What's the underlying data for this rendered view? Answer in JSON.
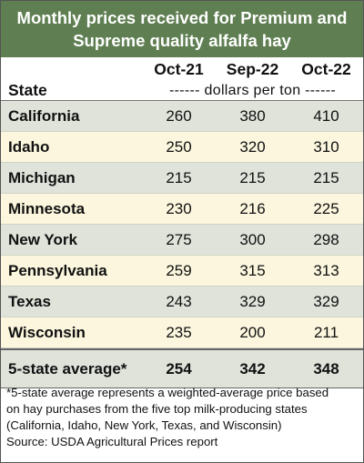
{
  "title": {
    "line1": "Monthly prices received for Premium and",
    "line2": "Supreme quality alfalfa hay"
  },
  "columns": [
    "Oct-21",
    "Sep-22",
    "Oct-22"
  ],
  "state_header": "State",
  "units": "------ dollars per ton ------",
  "rows": [
    {
      "state": "California",
      "values": [
        "260",
        "380",
        "410"
      ]
    },
    {
      "state": "Idaho",
      "values": [
        "250",
        "320",
        "310"
      ]
    },
    {
      "state": "Michigan",
      "values": [
        "215",
        "215",
        "215"
      ]
    },
    {
      "state": "Minnesota",
      "values": [
        "230",
        "216",
        "225"
      ]
    },
    {
      "state": "New York",
      "values": [
        "275",
        "300",
        "298"
      ]
    },
    {
      "state": "Pennsylvania",
      "values": [
        "259",
        "315",
        "313"
      ]
    },
    {
      "state": "Texas",
      "values": [
        "243",
        "329",
        "329"
      ]
    },
    {
      "state": "Wisconsin",
      "values": [
        "235",
        "200",
        "211"
      ]
    }
  ],
  "average": {
    "label": "5-state average*",
    "values": [
      "254",
      "342",
      "348"
    ]
  },
  "footnote": {
    "line1": "*5-state average represents  a weighted-average price based",
    "line2": "on hay purchases from the five top milk-producing states",
    "line3": "(California, Idaho, New York, Texas, and Wisconsin)",
    "line4": "Source: USDA Agricultural Prices report"
  },
  "colors": {
    "title_bg": "#5f7f52",
    "row_shade": "#dfe3da",
    "row_light": "#fbf6dd"
  },
  "chart_data": {
    "type": "table",
    "categories": [
      "California",
      "Idaho",
      "Michigan",
      "Minnesota",
      "New York",
      "Pennsylvania",
      "Texas",
      "Wisconsin",
      "5-state average*"
    ],
    "series": [
      {
        "name": "Oct-21",
        "values": [
          260,
          250,
          215,
          230,
          275,
          259,
          243,
          235,
          254
        ]
      },
      {
        "name": "Sep-22",
        "values": [
          380,
          320,
          215,
          216,
          300,
          315,
          329,
          200,
          342
        ]
      },
      {
        "name": "Oct-22",
        "values": [
          410,
          310,
          215,
          225,
          298,
          313,
          329,
          211,
          348
        ]
      }
    ],
    "title": "Monthly prices received for Premium and Supreme quality alfalfa hay"
  }
}
